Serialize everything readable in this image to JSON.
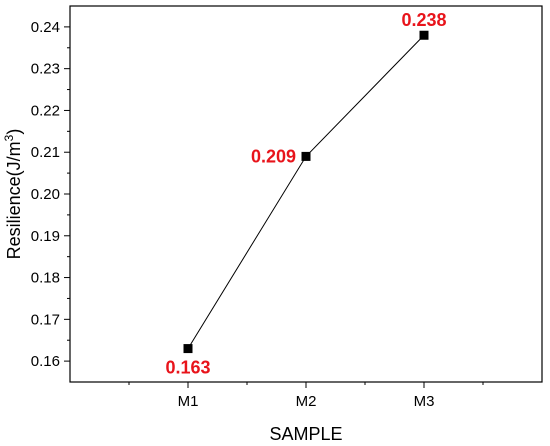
{
  "chart_data": {
    "type": "line",
    "categories": [
      "M1",
      "M2",
      "M3"
    ],
    "series": [
      {
        "values": [
          0.163,
          0.209,
          0.238
        ]
      }
    ],
    "data_labels": [
      "0.163",
      "0.209",
      "0.238"
    ],
    "xlabel": "SAMPLE",
    "ylabel": {
      "main": "Resilience(J/m",
      "sup": "3",
      "close": ")"
    },
    "ylim": [
      0.155,
      0.245
    ],
    "yticks": [
      0.16,
      0.17,
      0.18,
      0.19,
      0.2,
      0.21,
      0.22,
      0.23,
      0.24
    ],
    "ytick_labels": [
      "0.16",
      "0.17",
      "0.18",
      "0.19",
      "0.20",
      "0.21",
      "0.22",
      "0.23",
      "0.24"
    ],
    "grid": false,
    "legend": "none",
    "colors": {
      "line": "#000000",
      "marker": "#000000",
      "label": "#e8141b",
      "axis": "#000000"
    },
    "marker": "square"
  }
}
